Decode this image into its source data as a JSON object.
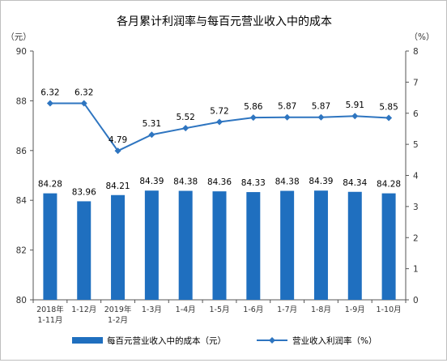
{
  "chart_data": {
    "type": "bar",
    "title": "各月累计利润率与每百元营业收入中的成本",
    "categories": [
      [
        "2018年",
        "1-11月"
      ],
      [
        "1-12月"
      ],
      [
        "2019年",
        "1-2月"
      ],
      [
        "1-3月"
      ],
      [
        "1-4月"
      ],
      [
        "1-5月"
      ],
      [
        "1-6月"
      ],
      [
        "1-7月"
      ],
      [
        "1-8月"
      ],
      [
        "1-9月"
      ],
      [
        "1-10月"
      ]
    ],
    "left_axis": {
      "unit_label": "（元）",
      "ylim": [
        80,
        90
      ],
      "ticks": [
        "80",
        "82",
        "84",
        "86",
        "88",
        "90"
      ]
    },
    "right_axis": {
      "unit_label": "（%）",
      "ylim": [
        0,
        8
      ],
      "ticks": [
        "0",
        "1",
        "2",
        "3",
        "4",
        "5",
        "6",
        "7",
        "8"
      ]
    },
    "series": [
      {
        "name": "每百元营业收入中的成本（元）",
        "type": "bar",
        "axis": "left",
        "color": "#1f6fbf",
        "values": [
          84.28,
          83.96,
          84.21,
          84.39,
          84.38,
          84.36,
          84.33,
          84.38,
          84.39,
          84.34,
          84.28
        ],
        "labels": [
          "84.28",
          "83.96",
          "84.21",
          "84.39",
          "84.38",
          "84.36",
          "84.33",
          "84.38",
          "84.39",
          "84.34",
          "84.28"
        ]
      },
      {
        "name": "营业收入利润率（%）",
        "type": "line",
        "axis": "right",
        "color": "#2e75c0",
        "values": [
          6.32,
          6.32,
          4.79,
          5.31,
          5.52,
          5.72,
          5.86,
          5.87,
          5.87,
          5.91,
          5.85
        ],
        "labels": [
          "6.32",
          "6.32",
          "4.79",
          "5.31",
          "5.52",
          "5.72",
          "5.86",
          "5.87",
          "5.87",
          "5.91",
          "5.85"
        ]
      }
    ],
    "grid": false,
    "legend": "bottom"
  }
}
